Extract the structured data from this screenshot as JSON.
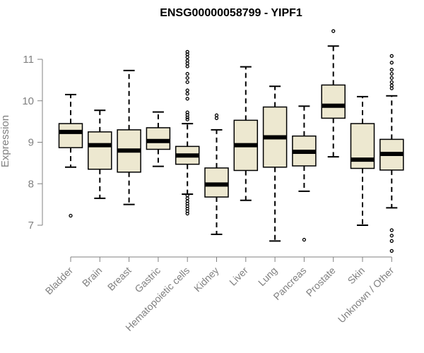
{
  "chart_data": {
    "type": "box",
    "title": "ENSG00000058799 - YIPF1",
    "xlabel": "",
    "ylabel": "Expression",
    "ylim": [
      6.3,
      11.75
    ],
    "yticks": [
      "7",
      "8",
      "9",
      "10",
      "11"
    ],
    "grid": false,
    "legend": "none",
    "colors": {
      "box_fill": "#ede8d0",
      "box_stroke": "#000000",
      "axis": "#808080"
    },
    "categories": [
      "Bladder",
      "Brain",
      "Breast",
      "Gastric",
      "Hematopoietic cells",
      "Kidney",
      "Liver",
      "Lung",
      "Pancreas",
      "Prostate",
      "Skin",
      "Unknown / Other"
    ],
    "boxes": [
      {
        "name": "Bladder",
        "q1": 8.87,
        "median": 9.25,
        "q3": 9.45,
        "whisker_low": 8.4,
        "whisker_high": 10.15,
        "outliers": [
          7.23
        ]
      },
      {
        "name": "Brain",
        "q1": 8.35,
        "median": 8.93,
        "q3": 9.25,
        "whisker_low": 7.65,
        "whisker_high": 9.77,
        "outliers": []
      },
      {
        "name": "Breast",
        "q1": 8.28,
        "median": 8.8,
        "q3": 9.3,
        "whisker_low": 7.5,
        "whisker_high": 10.73,
        "outliers": []
      },
      {
        "name": "Gastric",
        "q1": 8.83,
        "median": 9.03,
        "q3": 9.35,
        "whisker_low": 8.42,
        "whisker_high": 9.73,
        "outliers": []
      },
      {
        "name": "Hematopoietic cells",
        "q1": 8.47,
        "median": 8.68,
        "q3": 8.9,
        "whisker_low": 7.75,
        "whisker_high": 9.45,
        "outliers": [
          11.18,
          11.12,
          11.05,
          10.97,
          10.9,
          10.83,
          10.65,
          10.55,
          10.45,
          10.25,
          10.17,
          10.05,
          9.72,
          9.66,
          9.6,
          9.55,
          7.72,
          7.65,
          7.58,
          7.52,
          7.46,
          7.4,
          7.34,
          7.28
        ]
      },
      {
        "name": "Kidney",
        "q1": 7.68,
        "median": 7.98,
        "q3": 8.38,
        "whisker_low": 6.78,
        "whisker_high": 9.3,
        "outliers": [
          9.65,
          9.58
        ]
      },
      {
        "name": "Liver",
        "q1": 8.32,
        "median": 8.93,
        "q3": 9.53,
        "whisker_low": 7.6,
        "whisker_high": 10.82,
        "outliers": []
      },
      {
        "name": "Lung",
        "q1": 8.4,
        "median": 9.12,
        "q3": 9.85,
        "whisker_low": 6.62,
        "whisker_high": 10.35,
        "outliers": []
      },
      {
        "name": "Pancreas",
        "q1": 8.43,
        "median": 8.77,
        "q3": 9.15,
        "whisker_low": 7.82,
        "whisker_high": 9.87,
        "outliers": [
          6.65
        ]
      },
      {
        "name": "Prostate",
        "q1": 9.58,
        "median": 9.88,
        "q3": 10.38,
        "whisker_low": 8.65,
        "whisker_high": 11.32,
        "outliers": [
          11.68
        ]
      },
      {
        "name": "Skin",
        "q1": 8.37,
        "median": 8.58,
        "q3": 9.45,
        "whisker_low": 7.0,
        "whisker_high": 10.1,
        "outliers": []
      },
      {
        "name": "Unknown / Other",
        "q1": 8.33,
        "median": 8.72,
        "q3": 9.07,
        "whisker_low": 7.42,
        "whisker_high": 10.12,
        "outliers": [
          11.08,
          10.92,
          10.75,
          10.65,
          10.55,
          10.45,
          10.37,
          10.3,
          6.88,
          6.75,
          6.62,
          6.38
        ]
      }
    ]
  }
}
